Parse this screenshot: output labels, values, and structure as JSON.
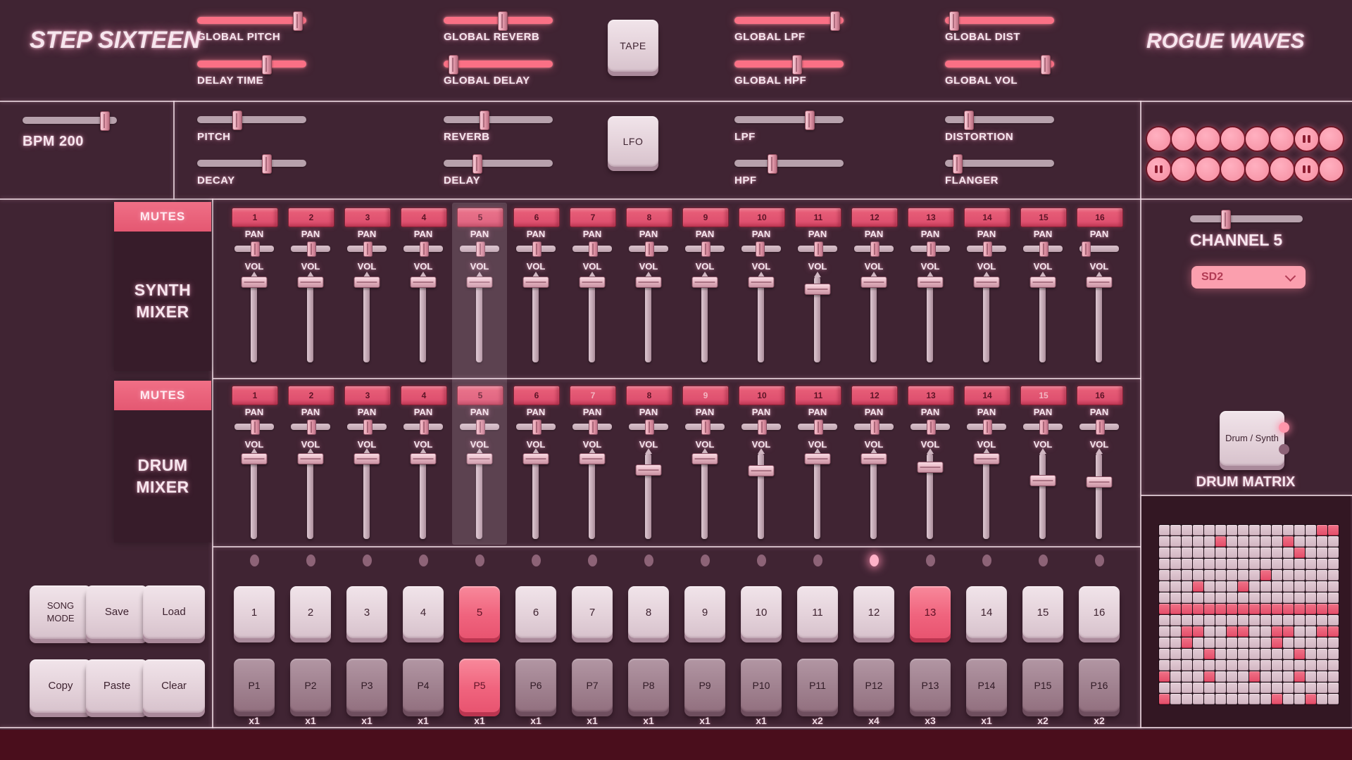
{
  "top": {
    "logo": "STEP SIXTEEN",
    "brand": "ROGUE WAVES",
    "tape": "TAPE",
    "groups": [
      [
        {
          "label": "GLOBAL PITCH",
          "value": 95
        },
        {
          "label": "DELAY TIME",
          "value": 64
        }
      ],
      [
        {
          "label": "GLOBAL REVERB",
          "value": 54
        },
        {
          "label": "GLOBAL DELAY",
          "value": 5
        }
      ],
      [
        {
          "label": "GLOBAL LPF",
          "value": 95
        },
        {
          "label": "GLOBAL HPF",
          "value": 57
        }
      ],
      [
        {
          "label": "GLOBAL DIST",
          "value": 4
        },
        {
          "label": "GLOBAL VOL",
          "value": 95
        }
      ]
    ]
  },
  "row2": {
    "bpm_label": "BPM 200",
    "bpm_value": 90,
    "lfo": "LFO",
    "groups": [
      [
        {
          "label": "PITCH",
          "value": 35
        },
        {
          "label": "DECAY",
          "value": 64
        }
      ],
      [
        {
          "label": "REVERB",
          "value": 36
        },
        {
          "label": "DELAY",
          "value": 29
        }
      ],
      [
        {
          "label": "LPF",
          "value": 70
        },
        {
          "label": "HPF",
          "value": 33
        }
      ],
      [
        {
          "label": "DISTORTION",
          "value": 19
        },
        {
          "label": "FLANGER",
          "value": 8
        }
      ]
    ]
  },
  "transport": {
    "pause_rows": [
      [
        0,
        0,
        0,
        0,
        0,
        0,
        1,
        0
      ],
      [
        1,
        0,
        0,
        0,
        0,
        0,
        1,
        0
      ]
    ]
  },
  "mixer_labels": {
    "pan": "PAN",
    "vol": "VOL"
  },
  "highlight_channel": 5,
  "mixers": [
    {
      "id": "synth",
      "mutes_label": "MUTES",
      "title": "SYNTH MIXER",
      "channels": [
        {
          "n": 1,
          "pan": 50,
          "vol": 100
        },
        {
          "n": 2,
          "pan": 50,
          "vol": 100
        },
        {
          "n": 3,
          "pan": 50,
          "vol": 100
        },
        {
          "n": 4,
          "pan": 50,
          "vol": 100
        },
        {
          "n": 5,
          "pan": 50,
          "vol": 100
        },
        {
          "n": 6,
          "pan": 50,
          "vol": 100
        },
        {
          "n": 7,
          "pan": 50,
          "vol": 100
        },
        {
          "n": 8,
          "pan": 50,
          "vol": 100
        },
        {
          "n": 9,
          "pan": 50,
          "vol": 100
        },
        {
          "n": 10,
          "pan": 45,
          "vol": 100
        },
        {
          "n": 11,
          "pan": 50,
          "vol": 91
        },
        {
          "n": 12,
          "pan": 50,
          "vol": 100
        },
        {
          "n": 13,
          "pan": 50,
          "vol": 100
        },
        {
          "n": 14,
          "pan": 50,
          "vol": 100
        },
        {
          "n": 15,
          "pan": 50,
          "vol": 100
        },
        {
          "n": 16,
          "pan": 6,
          "vol": 100
        }
      ]
    },
    {
      "id": "drum",
      "mutes_label": "MUTES",
      "title": "DRUM MIXER",
      "channels": [
        {
          "n": 1,
          "pan": 50,
          "vol": 100
        },
        {
          "n": 2,
          "pan": 50,
          "vol": 100
        },
        {
          "n": 3,
          "pan": 50,
          "vol": 100
        },
        {
          "n": 4,
          "pan": 50,
          "vol": 100
        },
        {
          "n": 5,
          "pan": 50,
          "vol": 100
        },
        {
          "n": 6,
          "pan": 50,
          "vol": 100
        },
        {
          "n": 7,
          "pan": 50,
          "vol": 100,
          "dim": true
        },
        {
          "n": 8,
          "pan": 50,
          "vol": 85
        },
        {
          "n": 9,
          "pan": 50,
          "vol": 100,
          "dim": true
        },
        {
          "n": 10,
          "pan": 50,
          "vol": 84
        },
        {
          "n": 11,
          "pan": 50,
          "vol": 100
        },
        {
          "n": 12,
          "pan": 50,
          "vol": 100
        },
        {
          "n": 13,
          "pan": 50,
          "vol": 89
        },
        {
          "n": 14,
          "pan": 50,
          "vol": 100
        },
        {
          "n": 15,
          "pan": 50,
          "vol": 71,
          "dim": true
        },
        {
          "n": 16,
          "pan": 50,
          "vol": 69
        }
      ]
    }
  ],
  "left_buttons": [
    {
      "label": "SONG MODE"
    },
    {
      "label": "Save"
    },
    {
      "label": "Load"
    },
    {
      "label": "Copy"
    },
    {
      "label": "Paste"
    },
    {
      "label": "Clear"
    }
  ],
  "steps": {
    "dot_on": 12,
    "buttons": [
      "1",
      "2",
      "3",
      "4",
      "5",
      "6",
      "7",
      "8",
      "9",
      "10",
      "11",
      "12",
      "13",
      "14",
      "15",
      "16"
    ],
    "active": [
      5,
      13
    ]
  },
  "patterns": {
    "buttons": [
      "P1",
      "P2",
      "P3",
      "P4",
      "P5",
      "P6",
      "P7",
      "P8",
      "P9",
      "P10",
      "P11",
      "P12",
      "P13",
      "P14",
      "P15",
      "P16"
    ],
    "active": [
      5
    ],
    "repeats": [
      "x1",
      "x1",
      "x1",
      "x1",
      "x1",
      "x1",
      "x1",
      "x1",
      "x1",
      "x1",
      "x2",
      "x4",
      "x3",
      "x1",
      "x2",
      "x2"
    ]
  },
  "right": {
    "channel_label": "CHANNEL 5",
    "channel_slider_value": 30,
    "sample": "SD2",
    "toggle": "Drum / Synth",
    "matrix_label": "DRUM MATRIX",
    "matrix": [
      "0000000000000011",
      "0000010000010000",
      "0000000000001000",
      "0000000000000000",
      "0000000001000000",
      "0001000100000000",
      "0000000000000000",
      "1111111111111111",
      "0000000000000000",
      "0011001100110011",
      "0010000000100000",
      "0000100000001000",
      "0000000000000000",
      "1000100010001000",
      "0000000000000000",
      "1000000000100100"
    ]
  },
  "colors": {
    "accent_hot": "#fa7085",
    "accent_red": "#e45872",
    "key_light": "#e4d2da",
    "key_dark": "#a0818f",
    "footer": "#4a0e1c",
    "background": "#402433"
  }
}
